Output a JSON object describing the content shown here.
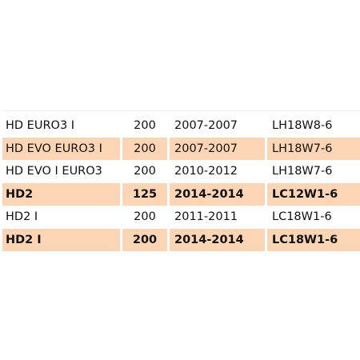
{
  "table": {
    "rows": [
      [
        "HD EURO3 I",
        "200",
        "2007-2007",
        "LH18W8-6"
      ],
      [
        "HD EVO EURO3 I",
        "200",
        "2007-2007",
        "LH18W7-6"
      ],
      [
        "HD EVO I EURO3",
        "200",
        "2010-2012",
        "LH18W7-6"
      ],
      [
        "HD2",
        "125",
        "2014-2014",
        "LC12W1-6"
      ],
      [
        "HD2 I",
        "200",
        "2011-2011",
        "LC18W1-6"
      ],
      [
        "HD2 I",
        "200",
        "2014-2014",
        "LC18W1-6"
      ]
    ]
  }
}
